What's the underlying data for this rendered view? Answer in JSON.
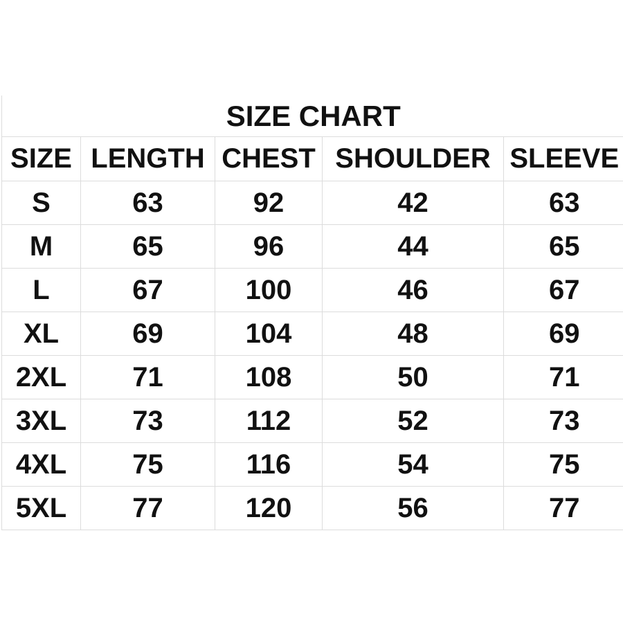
{
  "title": "SIZE CHART",
  "headers": [
    "SIZE",
    "LENGTH",
    "CHEST",
    "SHOULDER",
    "SLEEVE"
  ],
  "rows": [
    [
      "S",
      "63",
      "92",
      "42",
      "63"
    ],
    [
      "M",
      "65",
      "96",
      "44",
      "65"
    ],
    [
      "L",
      "67",
      "100",
      "46",
      "67"
    ],
    [
      "XL",
      "69",
      "104",
      "48",
      "69"
    ],
    [
      "2XL",
      "71",
      "108",
      "50",
      "71"
    ],
    [
      "3XL",
      "73",
      "112",
      "52",
      "73"
    ],
    [
      "4XL",
      "75",
      "116",
      "54",
      "75"
    ],
    [
      "5XL",
      "77",
      "120",
      "56",
      "77"
    ]
  ]
}
